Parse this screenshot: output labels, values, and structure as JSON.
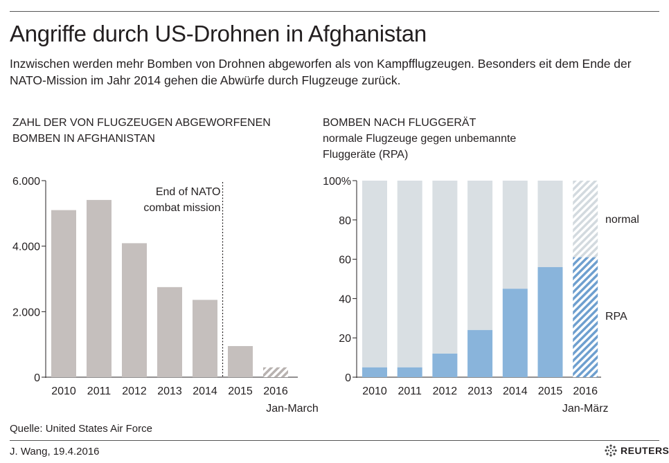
{
  "header": {
    "title": "Angriffe durch US-Drohnen in Afghanistan",
    "subtitle": "Inzwischen werden mehr Bomben von Drohnen abgeworfen als von Kampfflugzeugen. Besonders eit dem Ende der NATO-Mission im Jahr 2014 gehen die Abwürfe durch Flugzeuge zurück."
  },
  "footer": {
    "source": "Quelle: United States Air Force",
    "credit": "J. Wang,  19.4.2016",
    "logo_text": "REUTERS"
  },
  "chart_data": [
    {
      "type": "bar",
      "title_line1": "ZAHL DER VON FLUGZEUGEN ABGEWORFENEN",
      "title_line2": "BOMBEN IN AFGHANISTAN",
      "categories": [
        "2010",
        "2011",
        "2012",
        "2013",
        "2014",
        "2015",
        "2016"
      ],
      "category_sublabel": "Jan-March",
      "values": [
        5100,
        5410,
        4090,
        2750,
        2360,
        950,
        300
      ],
      "partial_period": "2016",
      "ylim": [
        0,
        6000
      ],
      "yticks": [
        "0",
        "2.000",
        "4.000",
        "6.000"
      ],
      "ytick_values": [
        0,
        2000,
        4000,
        6000
      ],
      "annotation_line1": "End of  NATO",
      "annotation_line2": "combat mission",
      "annotation_between": [
        "2014",
        "2015"
      ],
      "colors": {
        "bar": "#c5bfbd",
        "partial_hatch": "#b8b2b0"
      },
      "grid": false
    },
    {
      "type": "bar",
      "stacked": true,
      "title_line1": "BOMBEN NACH FLUGGERÄT",
      "title_line2": "normale Flugzeuge gegen unbemannte",
      "title_line3": "Fluggeräte (RPA)",
      "categories": [
        "2010",
        "2011",
        "2012",
        "2013",
        "2014",
        "2015",
        "2016"
      ],
      "category_sublabel": "Jan-März",
      "ylim": [
        0,
        100
      ],
      "yticks": [
        "0",
        "20",
        "40",
        "60",
        "80",
        "100%"
      ],
      "ytick_values": [
        0,
        20,
        40,
        60,
        80,
        100
      ],
      "series": [
        {
          "name": "RPA",
          "values": [
            5,
            5,
            12,
            24,
            45,
            56,
            61
          ],
          "color": "#89b4db"
        },
        {
          "name": "normal",
          "values": [
            95,
            95,
            88,
            76,
            55,
            44,
            39
          ],
          "color": "#d9dfe3"
        }
      ],
      "partial_period": "2016",
      "legend": "right",
      "grid": false
    }
  ]
}
